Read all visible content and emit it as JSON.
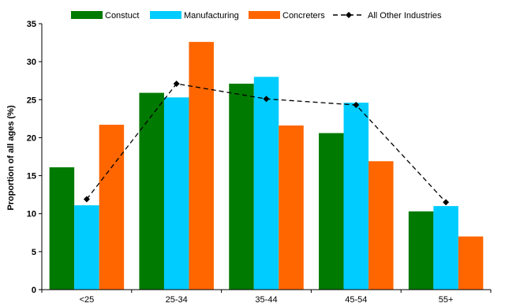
{
  "chart_data": {
    "type": "bar",
    "title": "",
    "xlabel": "",
    "ylabel": "Proportion of all ages (%)",
    "ylim": [
      0,
      35
    ],
    "yticks": [
      0,
      5,
      10,
      15,
      20,
      25,
      30,
      35
    ],
    "grid": false,
    "legend_position": "top",
    "categories": [
      "<25",
      "25-34",
      "35-44",
      "45-54",
      "55+"
    ],
    "series": [
      {
        "name": "Constuct",
        "type": "bar",
        "color": "#007A00",
        "values": [
          16.1,
          25.9,
          27.1,
          20.6,
          10.3
        ]
      },
      {
        "name": "Manufacturing",
        "type": "bar",
        "color": "#00CCFF",
        "values": [
          11.1,
          25.3,
          28.0,
          24.6,
          11.0
        ]
      },
      {
        "name": "Concreters",
        "type": "bar",
        "color": "#FF6600",
        "values": [
          21.7,
          32.6,
          21.6,
          16.9,
          7.0
        ]
      },
      {
        "name": "All Other Industries",
        "type": "line",
        "color": "#000000",
        "line_style": "dashed",
        "marker": "diamond",
        "values": [
          11.9,
          27.1,
          25.1,
          24.3,
          11.5
        ]
      }
    ]
  }
}
